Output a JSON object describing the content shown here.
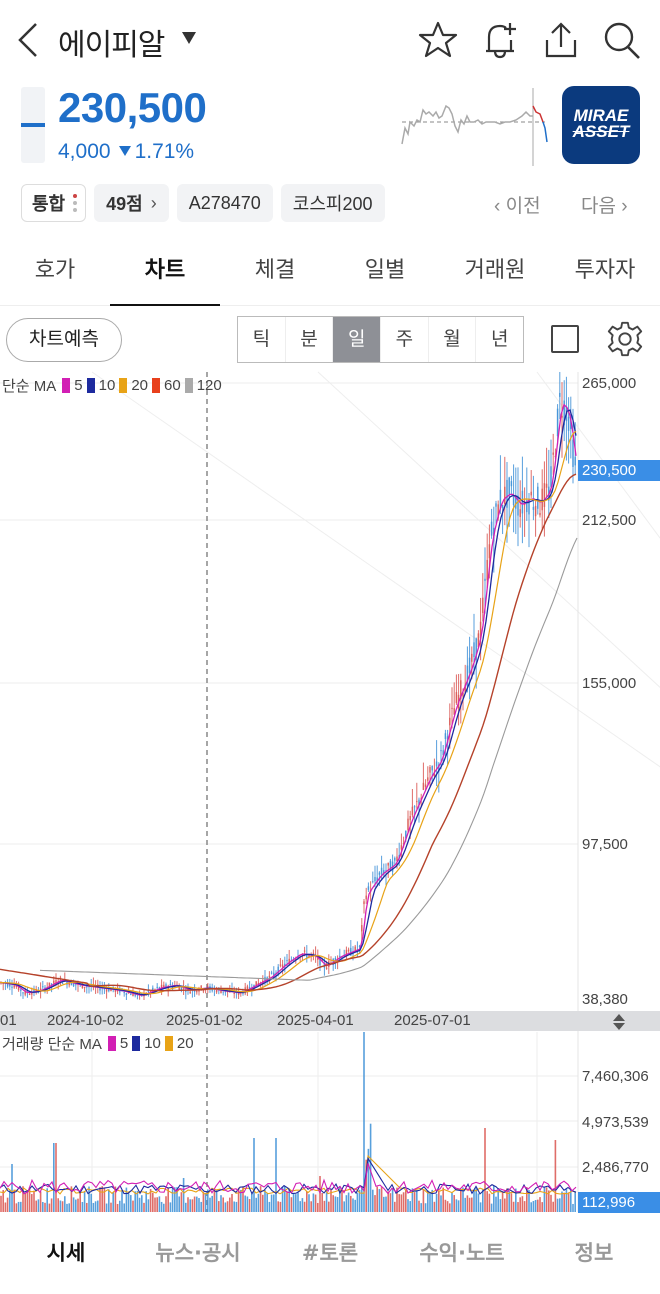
{
  "header": {
    "stock_name": "에이피알",
    "icons": [
      "back-icon",
      "dropdown-caret-icon",
      "star-icon",
      "bell-plus-icon",
      "share-icon",
      "search-icon"
    ]
  },
  "quote": {
    "price": "230,500",
    "change_amount": "4,000",
    "change_direction": "down",
    "change_pct": "1.71%",
    "color": "#1f6fc9",
    "broker_logo": {
      "line1": "MIRAE",
      "line2": "ASSET",
      "bg": "#0b3a7e"
    }
  },
  "chips": {
    "integrated": "통합",
    "score": "49점",
    "code": "A278470",
    "index": "코스피200",
    "prev": "이전",
    "next": "다음"
  },
  "tabs": [
    {
      "label": "호가",
      "active": false
    },
    {
      "label": "차트",
      "active": true
    },
    {
      "label": "체결",
      "active": false
    },
    {
      "label": "일별",
      "active": false
    },
    {
      "label": "거래원",
      "active": false
    },
    {
      "label": "투자자",
      "active": false
    }
  ],
  "toolbar": {
    "predict_label": "차트예측",
    "periods": [
      {
        "label": "틱",
        "active": false
      },
      {
        "label": "분",
        "active": false
      },
      {
        "label": "일",
        "active": true
      },
      {
        "label": "주",
        "active": false
      },
      {
        "label": "월",
        "active": false
      },
      {
        "label": "년",
        "active": false
      }
    ]
  },
  "chart_data": {
    "type": "candlestick",
    "price_panel": {
      "legend_prefix": "단순 MA",
      "ma": [
        {
          "period": "5",
          "color": "#d21fb4"
        },
        {
          "period": "10",
          "color": "#1d2a9e"
        },
        {
          "period": "20",
          "color": "#e8a317"
        },
        {
          "period": "60",
          "color": "#e8401c"
        },
        {
          "period": "120",
          "color": "#aaaaaa"
        }
      ],
      "y_ticks": [
        "265,000",
        "212,500",
        "155,000",
        "97,500",
        "38,380"
      ],
      "current_price_label": "230,500",
      "ylim": [
        38380,
        270000
      ]
    },
    "x_ticks": [
      "01",
      "2024-10-02",
      "2025-01-02",
      "2025-04-01",
      "2025-07-01"
    ],
    "volume_panel": {
      "legend_prefix": "거래량 단순 MA",
      "ma": [
        {
          "period": "5",
          "color": "#d21fb4"
        },
        {
          "period": "10",
          "color": "#1d2a9e"
        },
        {
          "period": "20",
          "color": "#e8a317"
        }
      ],
      "y_ticks": [
        "7,460,306",
        "4,973,539",
        "2,486,770"
      ],
      "current_volume_label": "112,996"
    },
    "close_path_approx": [
      [
        0,
        45000
      ],
      [
        15,
        44000
      ],
      [
        25,
        41000
      ],
      [
        40,
        42000
      ],
      [
        60,
        46000
      ],
      [
        80,
        44000
      ],
      [
        100,
        43000
      ],
      [
        120,
        42000
      ],
      [
        140,
        40000
      ],
      [
        160,
        43000
      ],
      [
        175,
        44000
      ],
      [
        190,
        42000
      ],
      [
        205,
        43000
      ],
      [
        220,
        42000
      ],
      [
        240,
        41000
      ],
      [
        255,
        44000
      ],
      [
        270,
        47000
      ],
      [
        285,
        52000
      ],
      [
        300,
        56000
      ],
      [
        315,
        55000
      ],
      [
        325,
        51000
      ],
      [
        340,
        55000
      ],
      [
        360,
        58000
      ],
      [
        365,
        78000
      ],
      [
        380,
        86000
      ],
      [
        395,
        90000
      ],
      [
        410,
        106000
      ],
      [
        420,
        114000
      ],
      [
        430,
        122000
      ],
      [
        440,
        127000
      ],
      [
        455,
        147000
      ],
      [
        470,
        160000
      ],
      [
        480,
        172000
      ],
      [
        490,
        205000
      ],
      [
        500,
        220000
      ],
      [
        510,
        223000
      ],
      [
        520,
        218000
      ],
      [
        530,
        221000
      ],
      [
        540,
        219000
      ],
      [
        550,
        224000
      ],
      [
        560,
        258000
      ],
      [
        568,
        254000
      ],
      [
        576,
        230500
      ]
    ]
  },
  "bottom_nav": [
    {
      "label": "시세",
      "active": true
    },
    {
      "label": "뉴스·공시",
      "active": false
    },
    {
      "label": "#토론",
      "active": false
    },
    {
      "label": "수익·노트",
      "active": false
    },
    {
      "label": "정보",
      "active": false
    }
  ]
}
